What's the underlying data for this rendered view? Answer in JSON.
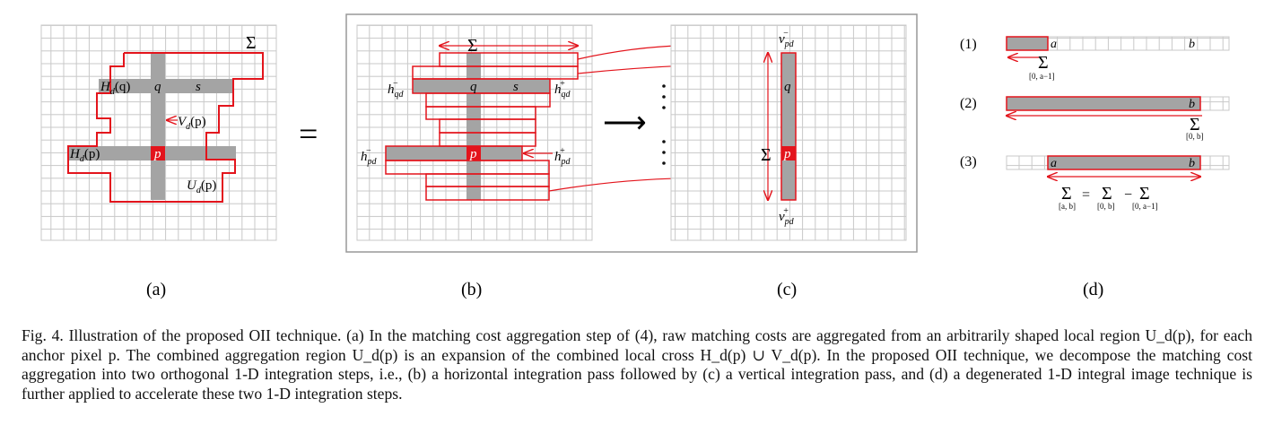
{
  "figure": {
    "panels": {
      "a": {
        "label": "(a)",
        "sigma": "Σ",
        "H_q": "H",
        "H_q_sub": "d",
        "H_q_arg": "(q)",
        "q": "q",
        "s": "s",
        "V_p": "V",
        "V_p_sub": "d",
        "V_p_arg": "(p)",
        "H_p": "H",
        "H_p_sub": "d",
        "H_p_arg": "(p)",
        "p": "p",
        "U_p": "U",
        "U_p_sub": "d",
        "U_p_arg": "(p)"
      },
      "equals": "=",
      "b": {
        "label": "(b)",
        "sigma": "Σ",
        "q": "q",
        "s": "s",
        "p": "p",
        "h_qd_minus": "h",
        "h_qd_minus_sub": "qd",
        "h_qd_minus_sup": "−",
        "h_qd_plus": "h",
        "h_qd_plus_sub": "qd",
        "h_qd_plus_sup": "+",
        "h_pd_minus": "h",
        "h_pd_minus_sub": "pd",
        "h_pd_minus_sup": "−",
        "h_pd_plus": "h",
        "h_pd_plus_sub": "pd",
        "h_pd_plus_sup": "+"
      },
      "arrow": "⟶",
      "c": {
        "label": "(c)",
        "sigma": "Σ",
        "q": "q",
        "p": "p",
        "v_top": "v",
        "v_top_sub": "pd",
        "v_top_sup": "−",
        "v_bot": "v",
        "v_bot_sub": "pd",
        "v_bot_sup": "+"
      },
      "d": {
        "label": "(d)",
        "row1": "(1)",
        "row2": "(2)",
        "row3": "(3)",
        "a": "a",
        "b": "b",
        "sum1_range": "[0, a−1]",
        "sum2_range": "[0, b]",
        "sigma": "Σ",
        "eq": "=",
        "minus": "−",
        "sum3_ab": "[a, b]",
        "sum3_0b": "[0, b]",
        "sum3_0a1": "[0, a−1]"
      }
    }
  },
  "caption": "Fig. 4.   Illustration of the proposed OII technique. (a) In the matching cost aggregation step of (4), raw matching costs are aggregated from an arbitrarily shaped local region U_d(p), for each anchor pixel p. The combined aggregation region U_d(p) is an expansion of the combined local cross H_d(p) ∪ V_d(p). In the proposed OII technique, we decompose the matching cost aggregation into two orthogonal 1-D integration steps, i.e., (b) a horizontal integration pass followed by (c) a vertical integration pass, and (d) a degenerated 1-D integral image technique is further applied to accelerate these two 1-D integration steps.",
  "colors": {
    "red": "#e3141c",
    "gray": "#a0a0a0",
    "grid": "#c8c8c8"
  }
}
